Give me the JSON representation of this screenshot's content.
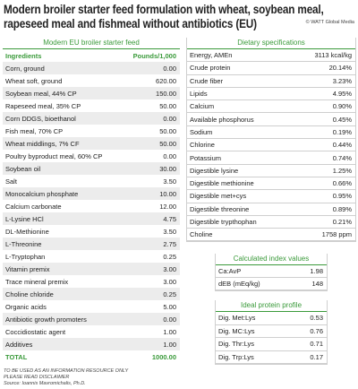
{
  "header": {
    "title_lines": [
      "Modern broiler starter feed formulation with wheat, soybean meal,",
      "rapeseed meal and fishmeal without antibiotics (EU)"
    ],
    "credit": "© WATT Global Media"
  },
  "feed_table": {
    "title": "Modern EU broiler starter feed",
    "columns": [
      "Ingredients",
      "Pounds/1,000"
    ],
    "rows": [
      [
        "Corn, ground",
        "0.00"
      ],
      [
        "Wheat soft, ground",
        "620.00"
      ],
      [
        "Soybean meal, 44% CP",
        "150.00"
      ],
      [
        "Rapeseed meal, 35% CP",
        "50.00"
      ],
      [
        "Corn DDGS, bioethanol",
        "0.00"
      ],
      [
        "Fish meal, 70% CP",
        "50.00"
      ],
      [
        "Wheat middlings, 7% CF",
        "50.00"
      ],
      [
        "Poultry byproduct meal, 60% CP",
        "0.00"
      ],
      [
        "Soybean oil",
        "30.00"
      ],
      [
        "Salt",
        "3.50"
      ],
      [
        "Monocalcium phosphate",
        "10.00"
      ],
      [
        "Calcium carbonate",
        "12.00"
      ],
      [
        "L-Lysine HCl",
        "4.75"
      ],
      [
        "DL-Methionine",
        "3.50"
      ],
      [
        "L-Threonine",
        "2.75"
      ],
      [
        "L-Tryptophan",
        "0.25"
      ],
      [
        "Vitamin premix",
        "3.00"
      ],
      [
        "Trace mineral premix",
        "3.00"
      ],
      [
        "Choline chloride",
        "0.25"
      ],
      [
        "Organic acids",
        "5.00"
      ],
      [
        "Antibiotic growth promoters",
        "0.00"
      ],
      [
        "Coccidiostatic agent",
        "1.00"
      ],
      [
        "Additives",
        "1.00"
      ]
    ],
    "total": [
      "TOTAL",
      "1000.00"
    ]
  },
  "specifications": {
    "title": "Dietary specifications",
    "rows": [
      [
        "Energy, AMEn",
        "3113 kcal/kg"
      ],
      [
        "Crude protein",
        "20.14%"
      ],
      [
        "Crude fiber",
        "3.23%"
      ],
      [
        "Lipids",
        "4.95%"
      ],
      [
        "Calcium",
        "0.90%"
      ],
      [
        "Available phosphorus",
        "0.45%"
      ],
      [
        "Sodium",
        "0.19%"
      ],
      [
        "Chlorine",
        "0.44%"
      ],
      [
        "Potassium",
        "0.74%"
      ],
      [
        "Digestible lysine",
        "1.25%"
      ],
      [
        "Digestible methionine",
        "0.66%"
      ],
      [
        "Digestible met+cys",
        "0.95%"
      ],
      [
        "Digestible threonine",
        "0.89%"
      ],
      [
        "Digestible trypthophan",
        "0.21%"
      ],
      [
        "Choline",
        "1758 ppm"
      ]
    ]
  },
  "index_values": {
    "title": "Calculated index values",
    "rows": [
      [
        "Ca:AvP",
        "1.98"
      ],
      [
        "dEB (mEq/kg)",
        "148"
      ]
    ]
  },
  "protein_profile": {
    "title": "Ideal protein profile",
    "rows": [
      [
        "Dig. Met:Lys",
        "0.53"
      ],
      [
        "Dig. MC:Lys",
        "0.76"
      ],
      [
        "Dig. Thr:Lys",
        "0.71"
      ],
      [
        "Dig. Trp:Lys",
        "0.17"
      ]
    ]
  },
  "footer": {
    "lines": [
      "TO BE USED AS AN INFORMATION RESOURCE ONLY",
      "PLEASE READ DISCLAIMER",
      "Source: Ioannis Mavromichalis, Ph.D."
    ]
  }
}
